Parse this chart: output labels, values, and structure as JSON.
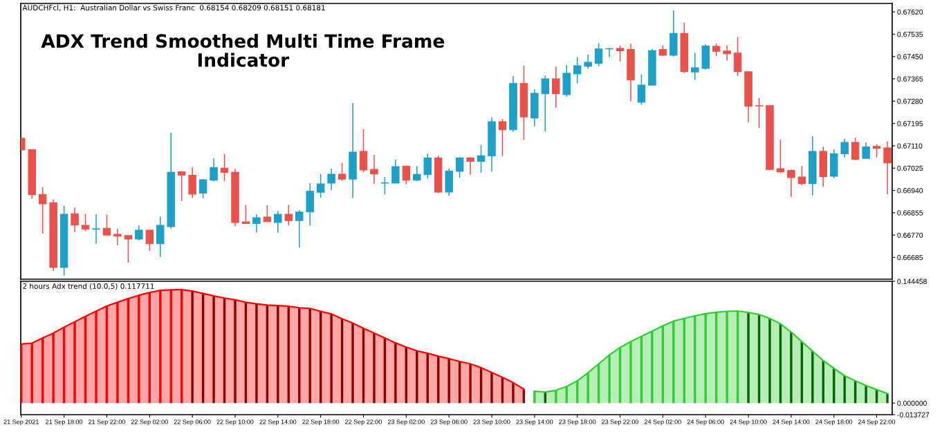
{
  "chart_data": [
    {
      "type": "candlestick",
      "title": "ADX Trend Smoothed Multi Time Frame\nIndicator",
      "subtitle": "AUDCHFcl, H1:  Australian Dollar vs Swiss Franc  0.68154 0.68209 0.68151 0.68181",
      "x": [
        "2021-09-21T14:00",
        "2021-09-21T15:00",
        "2021-09-21T16:00",
        "2021-09-21T17:00",
        "2021-09-21T18:00",
        "2021-09-21T19:00",
        "2021-09-21T20:00",
        "2021-09-21T21:00",
        "2021-09-21T22:00",
        "2021-09-21T23:00",
        "2021-09-22T00:00",
        "2021-09-22T01:00",
        "2021-09-22T02:00",
        "2021-09-22T03:00",
        "2021-09-22T04:00",
        "2021-09-22T05:00",
        "2021-09-22T06:00",
        "2021-09-22T07:00",
        "2021-09-22T08:00",
        "2021-09-22T09:00",
        "2021-09-22T10:00",
        "2021-09-22T11:00",
        "2021-09-22T12:00",
        "2021-09-22T13:00",
        "2021-09-22T14:00",
        "2021-09-22T15:00",
        "2021-09-22T16:00",
        "2021-09-22T17:00",
        "2021-09-22T18:00",
        "2021-09-22T19:00",
        "2021-09-22T20:00",
        "2021-09-22T21:00",
        "2021-09-22T22:00",
        "2021-09-22T23:00",
        "2021-09-23T00:00",
        "2021-09-23T01:00",
        "2021-09-23T02:00",
        "2021-09-23T03:00",
        "2021-09-23T04:00",
        "2021-09-23T05:00",
        "2021-09-23T06:00",
        "2021-09-23T07:00",
        "2021-09-23T08:00",
        "2021-09-23T09:00",
        "2021-09-23T10:00",
        "2021-09-23T11:00",
        "2021-09-23T12:00",
        "2021-09-23T13:00",
        "2021-09-23T14:00",
        "2021-09-23T15:00",
        "2021-09-23T16:00",
        "2021-09-23T17:00",
        "2021-09-23T18:00",
        "2021-09-23T19:00",
        "2021-09-23T20:00",
        "2021-09-23T21:00",
        "2021-09-23T22:00",
        "2021-09-23T23:00",
        "2021-09-24T00:00",
        "2021-09-24T01:00",
        "2021-09-24T02:00",
        "2021-09-24T03:00",
        "2021-09-24T04:00",
        "2021-09-24T05:00",
        "2021-09-24T06:00",
        "2021-09-24T07:00",
        "2021-09-24T08:00",
        "2021-09-24T09:00",
        "2021-09-24T10:00",
        "2021-09-24T11:00",
        "2021-09-24T12:00",
        "2021-09-24T13:00",
        "2021-09-24T14:00",
        "2021-09-24T15:00",
        "2021-09-24T16:00",
        "2021-09-24T17:00",
        "2021-09-24T18:00",
        "2021-09-24T19:00",
        "2021-09-24T20:00",
        "2021-09-24T21:00",
        "2021-09-24T22:00",
        "2021-09-24T23:00"
      ],
      "ohlc": [
        [
          0.67139,
          0.67139,
          0.67094,
          0.67094
        ],
        [
          0.67095,
          0.67097,
          0.66909,
          0.66924
        ],
        [
          0.66925,
          0.66953,
          0.66776,
          0.66889
        ],
        [
          0.66893,
          0.66905,
          0.66634,
          0.66647
        ],
        [
          0.66647,
          0.66881,
          0.66616,
          0.66849
        ],
        [
          0.66851,
          0.66875,
          0.66781,
          0.66808
        ],
        [
          0.66807,
          0.66851,
          0.66785,
          0.66792
        ],
        [
          0.66792,
          0.66849,
          0.66737,
          0.66794
        ],
        [
          0.66796,
          0.66847,
          0.66768,
          0.6677
        ],
        [
          0.66773,
          0.66794,
          0.66731,
          0.66766
        ],
        [
          0.66768,
          0.66768,
          0.66665,
          0.66755
        ],
        [
          0.66755,
          0.66807,
          0.6675,
          0.66789
        ],
        [
          0.66789,
          0.66789,
          0.6671,
          0.66737
        ],
        [
          0.66737,
          0.6684,
          0.66687,
          0.66807
        ],
        [
          0.66802,
          0.6716,
          0.66795,
          0.67009
        ],
        [
          0.67011,
          0.67014,
          0.66899,
          0.66998
        ],
        [
          0.66998,
          0.67029,
          0.66912,
          0.66926
        ],
        [
          0.6693,
          0.66983,
          0.6691,
          0.66981
        ],
        [
          0.66979,
          0.67062,
          0.66975,
          0.67027
        ],
        [
          0.67025,
          0.67079,
          0.66976,
          0.67009
        ],
        [
          0.67009,
          0.67022,
          0.66804,
          0.66818
        ],
        [
          0.6682,
          0.66884,
          0.66814,
          0.66814
        ],
        [
          0.66814,
          0.66849,
          0.66779,
          0.66836
        ],
        [
          0.66839,
          0.66884,
          0.66821,
          0.66821
        ],
        [
          0.66818,
          0.66862,
          0.66779,
          0.66849
        ],
        [
          0.66849,
          0.66884,
          0.66807,
          0.66825
        ],
        [
          0.66825,
          0.66865,
          0.66723,
          0.66858
        ],
        [
          0.66858,
          0.66968,
          0.66807,
          0.66937
        ],
        [
          0.66933,
          0.67003,
          0.66912,
          0.66965
        ],
        [
          0.66968,
          0.67023,
          0.66941,
          0.67002
        ],
        [
          0.67002,
          0.67045,
          0.66976,
          0.66983
        ],
        [
          0.66983,
          0.67273,
          0.66912,
          0.67086
        ],
        [
          0.67089,
          0.67174,
          0.67009,
          0.67018
        ],
        [
          0.6702,
          0.67076,
          0.66965,
          0.67003
        ],
        [
          0.66968,
          0.66991,
          0.66925,
          0.66969
        ],
        [
          0.66968,
          0.67058,
          0.66968,
          0.67031
        ],
        [
          0.67033,
          0.67033,
          0.66963,
          0.66979
        ],
        [
          0.66979,
          0.67032,
          0.66975,
          0.67001
        ],
        [
          0.67,
          0.6708,
          0.66985,
          0.67064
        ],
        [
          0.67064,
          0.67072,
          0.6693,
          0.66934
        ],
        [
          0.66934,
          0.67023,
          0.66919,
          0.67014
        ],
        [
          0.67013,
          0.67067,
          0.66989,
          0.67064
        ],
        [
          0.67064,
          0.67067,
          0.67,
          0.67051
        ],
        [
          0.67051,
          0.67114,
          0.67007,
          0.67072
        ],
        [
          0.67071,
          0.67218,
          0.67012,
          0.67202
        ],
        [
          0.67202,
          0.67212,
          0.67071,
          0.67171
        ],
        [
          0.67171,
          0.67376,
          0.67163,
          0.67347
        ],
        [
          0.67347,
          0.67415,
          0.67132,
          0.6722
        ],
        [
          0.67216,
          0.67325,
          0.67184,
          0.6731
        ],
        [
          0.67308,
          0.67378,
          0.67165,
          0.67365
        ],
        [
          0.67365,
          0.67411,
          0.67255,
          0.67308
        ],
        [
          0.67305,
          0.67417,
          0.67297,
          0.67386
        ],
        [
          0.67384,
          0.67448,
          0.67348,
          0.67415
        ],
        [
          0.67413,
          0.67457,
          0.67404,
          0.67428
        ],
        [
          0.67424,
          0.675,
          0.67413,
          0.67479
        ],
        [
          0.67479,
          0.67482,
          0.67448,
          0.6748
        ],
        [
          0.67481,
          0.67492,
          0.67431,
          0.67472
        ],
        [
          0.67477,
          0.67499,
          0.67279,
          0.67361
        ],
        [
          0.67276,
          0.67382,
          0.67266,
          0.67341
        ],
        [
          0.67341,
          0.67479,
          0.67341,
          0.67472
        ],
        [
          0.67477,
          0.67492,
          0.67452,
          0.67455
        ],
        [
          0.67455,
          0.67626,
          0.6745,
          0.67538
        ],
        [
          0.67538,
          0.67578,
          0.67387,
          0.67392
        ],
        [
          0.67391,
          0.67464,
          0.67361,
          0.67407
        ],
        [
          0.67405,
          0.67497,
          0.674,
          0.6749
        ],
        [
          0.67489,
          0.675,
          0.67452,
          0.6747
        ],
        [
          0.67471,
          0.67492,
          0.67435,
          0.67461
        ],
        [
          0.67463,
          0.67525,
          0.67376,
          0.67392
        ],
        [
          0.67392,
          0.67393,
          0.672,
          0.67261
        ],
        [
          0.67263,
          0.67292,
          0.67178,
          0.67262
        ],
        [
          0.67263,
          0.67263,
          0.67019,
          0.6702
        ],
        [
          0.67023,
          0.67133,
          0.67007,
          0.67011
        ],
        [
          0.67016,
          0.6702,
          0.66915,
          0.66989
        ],
        [
          0.66991,
          0.67033,
          0.66959,
          0.66966
        ],
        [
          0.66966,
          0.67146,
          0.66921,
          0.67089
        ],
        [
          0.67089,
          0.67106,
          0.66954,
          0.66992
        ],
        [
          0.66994,
          0.67097,
          0.66987,
          0.6708
        ],
        [
          0.6708,
          0.67136,
          0.67066,
          0.67123
        ],
        [
          0.67123,
          0.67141,
          0.67055,
          0.67058
        ],
        [
          0.67062,
          0.67123,
          0.67062,
          0.67106
        ],
        [
          0.67108,
          0.67115,
          0.67066,
          0.67101
        ],
        [
          0.67102,
          0.67127,
          0.66925,
          0.67045
        ]
      ],
      "colors": [
        "#e8524a",
        "#e8524a",
        "#e8524a",
        "#e8524a",
        "#1e9fc8",
        "#e8524a",
        "#e8524a",
        "#1e9fc8",
        "#e8524a",
        "#e8524a",
        "#e8524a",
        "#1e9fc8",
        "#e8524a",
        "#1e9fc8",
        "#1e9fc8",
        "#e8524a",
        "#e8524a",
        "#1e9fc8",
        "#1e9fc8",
        "#e8524a",
        "#e8524a",
        "#e8524a",
        "#1e9fc8",
        "#e8524a",
        "#1e9fc8",
        "#e8524a",
        "#1e9fc8",
        "#1e9fc8",
        "#1e9fc8",
        "#1e9fc8",
        "#e8524a",
        "#1e9fc8",
        "#e8524a",
        "#e8524a",
        "#1e9fc8",
        "#1e9fc8",
        "#e8524a",
        "#1e9fc8",
        "#1e9fc8",
        "#e8524a",
        "#1e9fc8",
        "#1e9fc8",
        "#e8524a",
        "#1e9fc8",
        "#1e9fc8",
        "#e8524a",
        "#1e9fc8",
        "#e8524a",
        "#1e9fc8",
        "#1e9fc8",
        "#e8524a",
        "#1e9fc8",
        "#1e9fc8",
        "#1e9fc8",
        "#1e9fc8",
        "#1e9fc8",
        "#e8524a",
        "#e8524a",
        "#1e9fc8",
        "#1e9fc8",
        "#e8524a",
        "#1e9fc8",
        "#e8524a",
        "#1e9fc8",
        "#1e9fc8",
        "#e8524a",
        "#e8524a",
        "#e8524a",
        "#e8524a",
        "#e8524a",
        "#e8524a",
        "#e8524a",
        "#e8524a",
        "#e8524a",
        "#1e9fc8",
        "#e8524a",
        "#1e9fc8",
        "#1e9fc8",
        "#e8524a",
        "#1e9fc8",
        "#e8524a",
        "#e8524a"
      ],
      "xlim": [
        "2021-09-21T13:57",
        "2021-09-24T23:27"
      ],
      "ylim": [
        0.66602,
        0.67652
      ],
      "yticks": [
        {
          "value": 0.66685,
          "label": "0.66685"
        },
        {
          "value": 0.6677,
          "label": "0.66770"
        },
        {
          "value": 0.66855,
          "label": "0.66855"
        },
        {
          "value": 0.6694,
          "label": "0.66940"
        },
        {
          "value": 0.67025,
          "label": "0.67025"
        },
        {
          "value": 0.6711,
          "label": "0.67110"
        },
        {
          "value": 0.67195,
          "label": "0.67195"
        },
        {
          "value": 0.6728,
          "label": "0.67280"
        },
        {
          "value": 0.67365,
          "label": "0.67365"
        },
        {
          "value": 0.6745,
          "label": "0.67450"
        },
        {
          "value": 0.67535,
          "label": "0.67535"
        },
        {
          "value": 0.6762,
          "label": "0.67620"
        }
      ],
      "tick_labels": "y"
    },
    {
      "type": "bar",
      "title": "2 hours Adx trend (10.0,5) 0.117711",
      "x": [
        "2021-09-21T14:00",
        "2021-09-21T15:00",
        "2021-09-21T16:00",
        "2021-09-21T17:00",
        "2021-09-21T18:00",
        "2021-09-21T19:00",
        "2021-09-21T20:00",
        "2021-09-21T21:00",
        "2021-09-21T22:00",
        "2021-09-21T23:00",
        "2021-09-22T00:00",
        "2021-09-22T01:00",
        "2021-09-22T02:00",
        "2021-09-22T03:00",
        "2021-09-22T04:00",
        "2021-09-22T05:00",
        "2021-09-22T06:00",
        "2021-09-22T07:00",
        "2021-09-22T08:00",
        "2021-09-22T09:00",
        "2021-09-22T10:00",
        "2021-09-22T11:00",
        "2021-09-22T12:00",
        "2021-09-22T13:00",
        "2021-09-22T14:00",
        "2021-09-22T15:00",
        "2021-09-22T16:00",
        "2021-09-22T17:00",
        "2021-09-22T18:00",
        "2021-09-22T19:00",
        "2021-09-22T20:00",
        "2021-09-22T21:00",
        "2021-09-22T22:00",
        "2021-09-22T23:00",
        "2021-09-23T00:00",
        "2021-09-23T01:00",
        "2021-09-23T02:00",
        "2021-09-23T03:00",
        "2021-09-23T04:00",
        "2021-09-23T05:00",
        "2021-09-23T06:00",
        "2021-09-23T07:00",
        "2021-09-23T08:00",
        "2021-09-23T09:00",
        "2021-09-23T10:00",
        "2021-09-23T11:00",
        "2021-09-23T12:00",
        "2021-09-23T13:00",
        "2021-09-23T14:00",
        "2021-09-23T15:00",
        "2021-09-23T16:00",
        "2021-09-23T17:00",
        "2021-09-23T18:00",
        "2021-09-23T19:00",
        "2021-09-23T20:00",
        "2021-09-23T21:00",
        "2021-09-23T22:00",
        "2021-09-23T23:00",
        "2021-09-24T00:00",
        "2021-09-24T01:00",
        "2021-09-24T02:00",
        "2021-09-24T03:00",
        "2021-09-24T04:00",
        "2021-09-24T05:00",
        "2021-09-24T06:00",
        "2021-09-24T07:00",
        "2021-09-24T08:00",
        "2021-09-24T09:00",
        "2021-09-24T10:00",
        "2021-09-24T11:00",
        "2021-09-24T12:00",
        "2021-09-24T13:00",
        "2021-09-24T14:00",
        "2021-09-24T15:00",
        "2021-09-24T16:00",
        "2021-09-24T17:00",
        "2021-09-24T18:00",
        "2021-09-24T19:00",
        "2021-09-24T20:00",
        "2021-09-24T21:00",
        "2021-09-24T22:00",
        "2021-09-24T23:00"
      ],
      "series": [
        {
          "type": "area",
          "color": "#ff0000",
          "values": [
            0.07,
            0.0711,
            0.0773,
            0.083,
            0.0899,
            0.0964,
            0.1029,
            0.109,
            0.1152,
            0.1196,
            0.1239,
            0.1279,
            0.1311,
            0.1337,
            0.1343,
            0.1346,
            0.1329,
            0.13,
            0.1272,
            0.1246,
            0.1225,
            0.1196,
            0.1178,
            0.1163,
            0.1156,
            0.1149,
            0.1131,
            0.1123,
            0.1087,
            0.1058,
            0.1,
            0.0949,
            0.0888,
            0.083,
            0.0773,
            0.0714,
            0.0664,
            0.062,
            0.0591,
            0.0556,
            0.0527,
            0.0494,
            0.0465,
            0.0421,
            0.0363,
            0.0306,
            0.0243,
            0.0165,
            null,
            null,
            null,
            null,
            null,
            null,
            null,
            null,
            null,
            null,
            null,
            null,
            null,
            null,
            null,
            null,
            null,
            null,
            null,
            null,
            null,
            null,
            null,
            null,
            null,
            null,
            null,
            null,
            null,
            null,
            null,
            null,
            null,
            null
          ]
        },
        {
          "type": "area",
          "color": "#32cd32",
          "values": [
            null,
            null,
            null,
            null,
            null,
            null,
            null,
            null,
            null,
            null,
            null,
            null,
            null,
            null,
            null,
            null,
            null,
            null,
            null,
            null,
            null,
            null,
            null,
            null,
            null,
            null,
            null,
            null,
            null,
            null,
            null,
            null,
            null,
            null,
            null,
            null,
            null,
            null,
            null,
            null,
            null,
            null,
            null,
            null,
            null,
            null,
            null,
            null,
            0.0141,
            0.013,
            0.0151,
            0.0197,
            0.0264,
            0.0359,
            0.0465,
            0.057,
            0.0659,
            0.0729,
            0.0792,
            0.0852,
            0.0915,
            0.0972,
            0.1004,
            0.1035,
            0.106,
            0.1077,
            0.1088,
            0.1092,
            0.1074,
            0.105,
            0.1004,
            0.094,
            0.0842,
            0.0729,
            0.0616,
            0.0504,
            0.0412,
            0.0324,
            0.0264,
            0.0208,
            0.0159,
            0.0113
          ]
        },
        {
          "type": "bar",
          "colors": [
            "#ff0000",
            "#ff0000",
            "#ff0000",
            "#ff0000",
            "#ff0000",
            "#ff0000",
            "#ff0000",
            "#ff0000",
            "#ff0000",
            "#ff0000",
            "#ff0000",
            "#ff0000",
            "#ff0000",
            "#ff0000",
            "#ff0000",
            "#ff0000",
            "#8b0000",
            "#8b0000",
            "#8b0000",
            "#8b0000",
            "#8b0000",
            "#8b0000",
            "#8b0000",
            "#8b0000",
            "#8b0000",
            "#8b0000",
            "#8b0000",
            "#8b0000",
            "#8b0000",
            "#8b0000",
            "#8b0000",
            "#8b0000",
            "#8b0000",
            "#8b0000",
            "#8b0000",
            "#8b0000",
            "#8b0000",
            "#8b0000",
            "#8b0000",
            "#8b0000",
            "#8b0000",
            "#8b0000",
            "#8b0000",
            "#8b0000",
            "#8b0000",
            "#8b0000",
            "#8b0000",
            "#8b0000",
            "#32cd32",
            "#006400",
            "#32cd32",
            "#32cd32",
            "#32cd32",
            "#32cd32",
            "#32cd32",
            "#32cd32",
            "#32cd32",
            "#32cd32",
            "#32cd32",
            "#32cd32",
            "#32cd32",
            "#32cd32",
            "#32cd32",
            "#32cd32",
            "#32cd32",
            "#32cd32",
            "#32cd32",
            "#32cd32",
            "#006400",
            "#006400",
            "#006400",
            "#006400",
            "#006400",
            "#006400",
            "#006400",
            "#006400",
            "#006400",
            "#006400",
            "#006400",
            "#006400",
            "#006400",
            "#006400"
          ],
          "values": [
            0.07,
            0.0711,
            0.0773,
            0.083,
            0.0899,
            0.0964,
            0.1029,
            0.109,
            0.1152,
            0.1196,
            0.1239,
            0.1279,
            0.1311,
            0.1337,
            0.1343,
            0.1346,
            0.1329,
            0.13,
            0.1272,
            0.1246,
            0.1225,
            0.1196,
            0.1178,
            0.1163,
            0.1156,
            0.1149,
            0.1131,
            0.1123,
            0.1087,
            0.1058,
            0.1,
            0.0949,
            0.0888,
            0.083,
            0.0773,
            0.0714,
            0.0664,
            0.062,
            0.0591,
            0.0556,
            0.0527,
            0.0494,
            0.0465,
            0.0421,
            0.0363,
            0.0306,
            0.0243,
            0.0165,
            0.0141,
            0.013,
            0.0151,
            0.0197,
            0.0264,
            0.0359,
            0.0465,
            0.057,
            0.0659,
            0.0729,
            0.0792,
            0.0852,
            0.0915,
            0.0972,
            0.1004,
            0.1035,
            0.106,
            0.1077,
            0.1088,
            0.1092,
            0.1074,
            0.105,
            0.1004,
            0.094,
            0.0842,
            0.0729,
            0.0616,
            0.0504,
            0.0412,
            0.0324,
            0.0264,
            0.0208,
            0.0159,
            0.0113
          ]
        }
      ],
      "xlim": [
        "2021-09-21T13:57",
        "2021-09-24T23:27"
      ],
      "xticks": [
        {
          "value": "2021-09-21T14:00",
          "label": "21 Sep 2021"
        },
        {
          "value": "2021-09-21T18:00",
          "label": "21 Sep 18:00"
        },
        {
          "value": "2021-09-21T22:00",
          "label": "21 Sep 22:00"
        },
        {
          "value": "2021-09-22T02:00",
          "label": "22 Sep 02:00"
        },
        {
          "value": "2021-09-22T06:00",
          "label": "22 Sep 06:00"
        },
        {
          "value": "2021-09-22T10:00",
          "label": "22 Sep 10:00"
        },
        {
          "value": "2021-09-22T14:00",
          "label": "22 Sep 14:00"
        },
        {
          "value": "2021-09-22T18:00",
          "label": "22 Sep 18:00"
        },
        {
          "value": "2021-09-22T22:00",
          "label": "22 Sep 22:00"
        },
        {
          "value": "2021-09-23T02:00",
          "label": "23 Sep 02:00"
        },
        {
          "value": "2021-09-23T06:00",
          "label": "23 Sep 06:00"
        },
        {
          "value": "2021-09-23T10:00",
          "label": "23 Sep 10:00"
        },
        {
          "value": "2021-09-23T14:00",
          "label": "23 Sep 14:00"
        },
        {
          "value": "2021-09-23T18:00",
          "label": "23 Sep 18:00"
        },
        {
          "value": "2021-09-23T22:00",
          "label": "23 Sep 22:00"
        },
        {
          "value": "2021-09-24T02:00",
          "label": "24 Sep 02:00"
        },
        {
          "value": "2021-09-24T06:00",
          "label": "24 Sep 06:00"
        },
        {
          "value": "2021-09-24T10:00",
          "label": "24 Sep 10:00"
        },
        {
          "value": "2021-09-24T14:00",
          "label": "24 Sep 14:00"
        },
        {
          "value": "2021-09-24T18:00",
          "label": "24 Sep 18:00"
        },
        {
          "value": "2021-09-24T22:00",
          "label": "24 Sep 22:00"
        }
      ],
      "ylim": [
        -0.013727,
        0.144458
      ],
      "yticks": [
        {
          "value": -0.013727,
          "label": "-0.013727"
        },
        {
          "value": 0,
          "label": "0.000000"
        },
        {
          "value": 0.144458,
          "label": "0.144458"
        }
      ]
    }
  ]
}
